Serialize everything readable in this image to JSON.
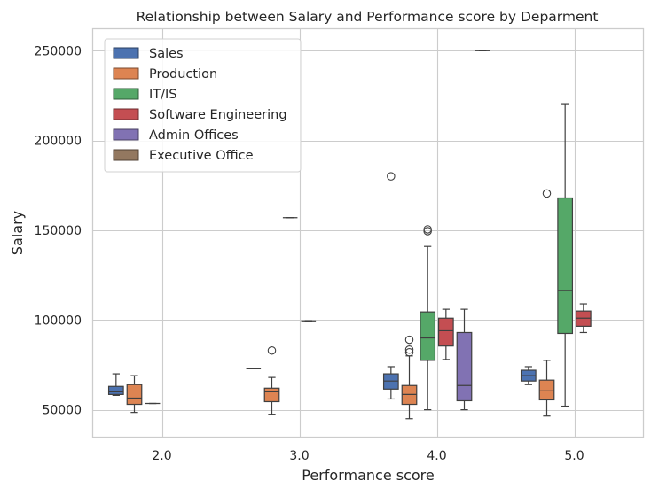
{
  "chart_data": {
    "type": "boxplot",
    "title": "Relationship between Salary and Performance score by Deparment",
    "xlabel": "Performance score",
    "ylabel": "Salary",
    "categories": [
      "2.0",
      "3.0",
      "4.0",
      "5.0"
    ],
    "ylim": [
      35000,
      262000
    ],
    "yticks": [
      50000,
      100000,
      150000,
      200000,
      250000
    ],
    "grid": true,
    "legend_position": "top-left",
    "series": [
      {
        "name": "Sales",
        "color": "#4c72b0",
        "boxes": [
          {
            "category": "2.0",
            "whislo": 58000,
            "q1": 58500,
            "med": 60000,
            "q3": 63000,
            "whishi": 70000,
            "fliers": []
          },
          {
            "category": "3.0",
            "whislo": 72800,
            "q1": 72800,
            "med": 72800,
            "q3": 72800,
            "whishi": 72800,
            "fliers": []
          },
          {
            "category": "4.0",
            "whislo": 56000,
            "q1": 61500,
            "med": 66000,
            "q3": 70000,
            "whishi": 74000,
            "fliers": [
              180000
            ]
          },
          {
            "category": "5.0",
            "whislo": 64000,
            "q1": 66000,
            "med": 69000,
            "q3": 72000,
            "whishi": 74000,
            "fliers": []
          }
        ]
      },
      {
        "name": "Production",
        "color": "#dd8452",
        "boxes": [
          {
            "category": "2.0",
            "whislo": 48500,
            "q1": 53000,
            "med": 56500,
            "q3": 64000,
            "whishi": 69000,
            "fliers": []
          },
          {
            "category": "3.0",
            "whislo": 47500,
            "q1": 54500,
            "med": 60000,
            "q3": 62000,
            "whishi": 68000,
            "fliers": [
              83000
            ]
          },
          {
            "category": "4.0",
            "whislo": 45000,
            "q1": 53000,
            "med": 58500,
            "q3": 63500,
            "whishi": 80000,
            "fliers": [
              82000,
              83500,
              89000
            ]
          },
          {
            "category": "5.0",
            "whislo": 46500,
            "q1": 55500,
            "med": 60500,
            "q3": 66500,
            "whishi": 77500,
            "fliers": [
              170500
            ]
          }
        ]
      },
      {
        "name": "IT/IS",
        "color": "#55a868",
        "boxes": [
          {
            "category": "2.0",
            "whislo": 53500,
            "q1": 53500,
            "med": 53500,
            "q3": 53500,
            "whishi": 53500,
            "fliers": []
          },
          {
            "category": "3.0",
            "whislo": 157000,
            "q1": 157000,
            "med": 157000,
            "q3": 157000,
            "whishi": 157000,
            "fliers": []
          },
          {
            "category": "4.0",
            "whislo": 50000,
            "q1": 77500,
            "med": 90000,
            "q3": 104500,
            "whishi": 141000,
            "fliers": [
              149500,
              150500
            ]
          },
          {
            "category": "5.0",
            "whislo": 52000,
            "q1": 92500,
            "med": 116500,
            "q3": 168000,
            "whishi": 220500,
            "fliers": []
          }
        ]
      },
      {
        "name": "Software Engineering",
        "color": "#c44e52",
        "boxes": [
          {
            "category": "3.0",
            "whislo": 99500,
            "q1": 99500,
            "med": 99500,
            "q3": 99500,
            "whishi": 99500,
            "fliers": []
          },
          {
            "category": "4.0",
            "whislo": 78000,
            "q1": 85500,
            "med": 94000,
            "q3": 101000,
            "whishi": 106000,
            "fliers": []
          },
          {
            "category": "5.0",
            "whislo": 93000,
            "q1": 96500,
            "med": 101000,
            "q3": 105000,
            "whishi": 109000,
            "fliers": []
          }
        ]
      },
      {
        "name": "Admin Offices",
        "color": "#8172b3",
        "boxes": [
          {
            "category": "4.0",
            "whislo": 50000,
            "q1": 55000,
            "med": 63500,
            "q3": 93000,
            "whishi": 106000,
            "fliers": []
          }
        ]
      },
      {
        "name": "Executive Office",
        "color": "#937860",
        "boxes": [
          {
            "category": "4.0",
            "whislo": 250000,
            "q1": 250000,
            "med": 250000,
            "q3": 250000,
            "whishi": 250000,
            "fliers": []
          }
        ]
      }
    ]
  }
}
